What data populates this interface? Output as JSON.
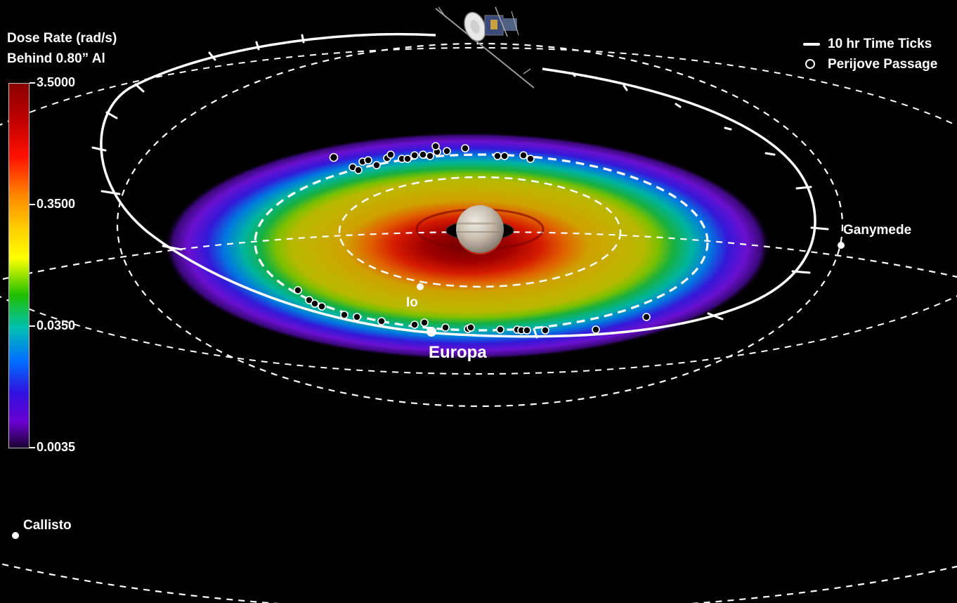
{
  "colorbar": {
    "title_line1": "Dose Rate (rad/s)",
    "title_line2": "Behind 0.80” Al",
    "ticks": [
      "3.5000",
      "0.3500",
      "0.0350",
      "0.0035"
    ],
    "colors": [
      "#8b0000",
      "#e00000",
      "#ff7a00",
      "#ffd000",
      "#ffff00",
      "#60d000",
      "#00b050",
      "#00c8c8",
      "#0060ff",
      "#3000c8",
      "#6a00d8",
      "#2a0050"
    ]
  },
  "legend": {
    "time_ticks": "10 hr Time Ticks",
    "perijove": "Perijove Passage"
  },
  "moons": {
    "io": "Io",
    "europa": "Europa",
    "ganymede": "Ganymede",
    "callisto": "Callisto"
  },
  "icons": [
    "spacecraft-icon",
    "jupiter-icon"
  ]
}
